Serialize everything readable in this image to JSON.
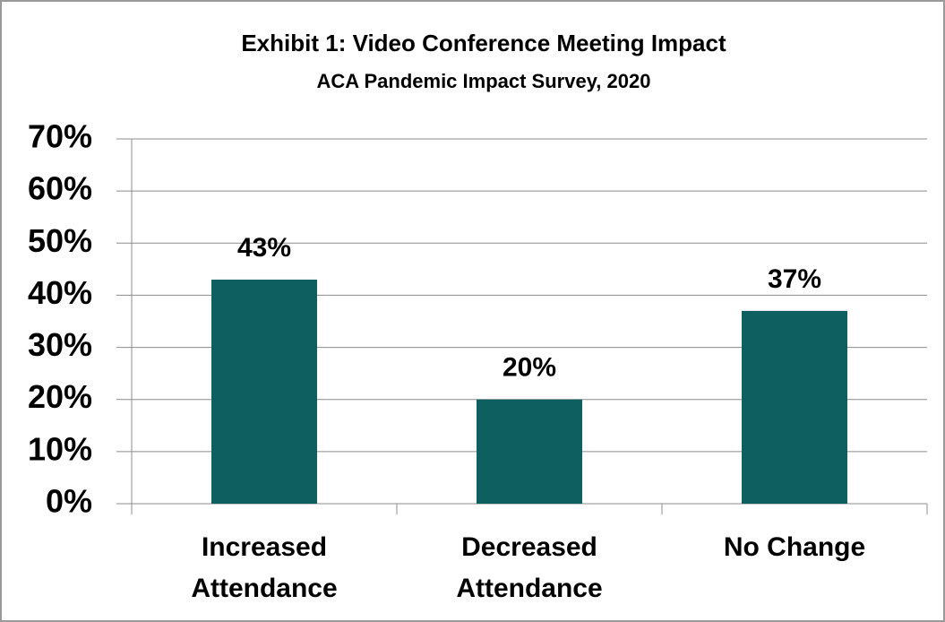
{
  "chart_data": {
    "type": "bar",
    "title": "Exhibit 1: Video Conference Meeting Impact",
    "subtitle": "ACA Pandemic Impact Survey, 2020",
    "categories": [
      "Increased Attendance",
      "Decreased Attendance",
      "No Change"
    ],
    "values": [
      43,
      20,
      37
    ],
    "value_labels": [
      "43%",
      "20%",
      "37%"
    ],
    "color": "#0e5f60",
    "ylim": [
      0,
      70
    ],
    "yticks": [
      {
        "value": 0,
        "label": "0%"
      },
      {
        "value": 10,
        "label": "10%"
      },
      {
        "value": 20,
        "label": "20%"
      },
      {
        "value": 30,
        "label": "30%"
      },
      {
        "value": 40,
        "label": "40%"
      },
      {
        "value": 50,
        "label": "50%"
      },
      {
        "value": 60,
        "label": "60%"
      },
      {
        "value": 70,
        "label": "70%"
      }
    ],
    "grid": true
  }
}
